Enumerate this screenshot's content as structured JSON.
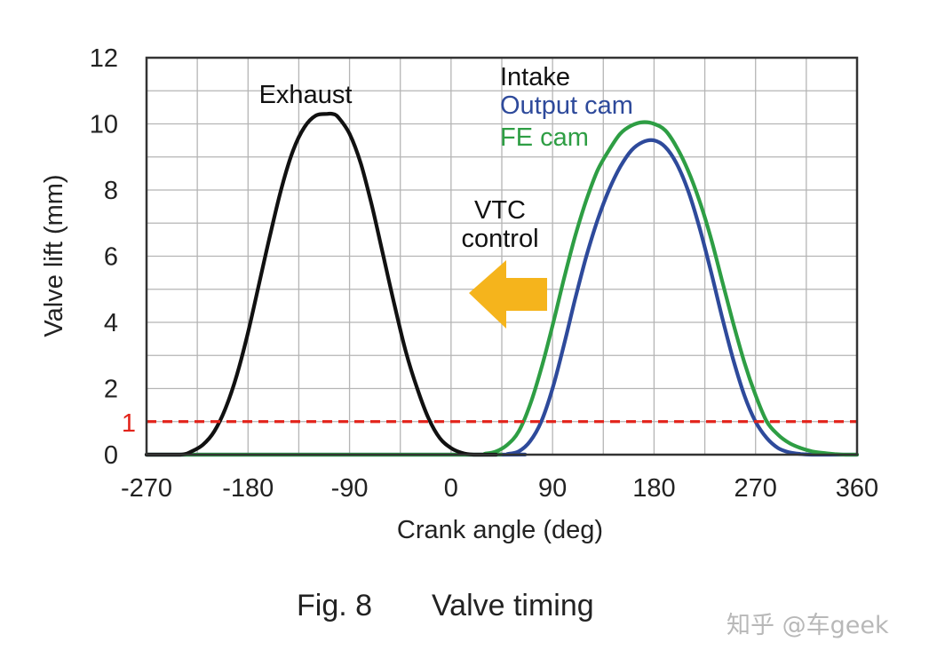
{
  "chart_data": {
    "type": "line",
    "xlabel": "Crank angle (deg)",
    "ylabel": "Valve lift (mm)",
    "xlim": [
      -270,
      360
    ],
    "ylim": [
      0,
      12
    ],
    "xticks": [
      -270,
      -180,
      -90,
      0,
      90,
      180,
      270,
      360
    ],
    "xtick_labels": [
      "-270",
      "-180",
      "-90",
      "0",
      "90",
      "180",
      "270",
      "360"
    ],
    "yticks": [
      0,
      2,
      4,
      6,
      8,
      10,
      12
    ],
    "ytick_labels": [
      "0",
      "2",
      "4",
      "6",
      "8",
      "10",
      "12"
    ],
    "grid": true,
    "series": [
      {
        "name": "Exhaust",
        "color": "#111111",
        "x": [
          -270,
          -240,
          -230,
          -220,
          -210,
          -200,
          -190,
          -180,
          -170,
          -160,
          -150,
          -140,
          -130,
          -120,
          -110,
          -105,
          -100,
          -90,
          -80,
          -70,
          -60,
          -50,
          -40,
          -30,
          -20,
          -10,
          0,
          10,
          20,
          30,
          40
        ],
        "y": [
          0,
          0,
          0.1,
          0.3,
          0.7,
          1.4,
          2.4,
          3.7,
          5.2,
          6.7,
          8.1,
          9.2,
          9.9,
          10.25,
          10.3,
          10.3,
          10.2,
          9.7,
          8.8,
          7.5,
          6.0,
          4.5,
          3.1,
          2.0,
          1.1,
          0.5,
          0.2,
          0.05,
          0,
          0,
          0
        ]
      },
      {
        "name": "Output cam",
        "color": "#2e4a9b",
        "x": [
          -270,
          40,
          50,
          60,
          70,
          80,
          90,
          100,
          110,
          120,
          130,
          140,
          150,
          160,
          170,
          180,
          190,
          200,
          210,
          220,
          230,
          240,
          250,
          260,
          270,
          280,
          290,
          300,
          310,
          320,
          330,
          360
        ],
        "y": [
          0,
          0,
          0.02,
          0.1,
          0.4,
          1.0,
          2.0,
          3.3,
          4.7,
          6.0,
          7.1,
          8.0,
          8.7,
          9.2,
          9.45,
          9.5,
          9.3,
          8.8,
          8.0,
          6.9,
          5.6,
          4.2,
          2.9,
          1.8,
          1.0,
          0.5,
          0.2,
          0.07,
          0.02,
          0,
          0,
          0
        ]
      },
      {
        "name": "FE cam",
        "color": "#2e9e44",
        "x": [
          -270,
          20,
          30,
          40,
          50,
          60,
          70,
          80,
          90,
          100,
          110,
          120,
          130,
          140,
          150,
          160,
          170,
          180,
          190,
          200,
          210,
          220,
          230,
          240,
          250,
          260,
          270,
          280,
          290,
          300,
          310,
          320,
          330,
          340,
          350,
          360
        ],
        "y": [
          0,
          0,
          0.03,
          0.1,
          0.3,
          0.7,
          1.5,
          2.6,
          3.9,
          5.3,
          6.6,
          7.7,
          8.6,
          9.2,
          9.7,
          9.95,
          10.05,
          10.0,
          9.8,
          9.3,
          8.6,
          7.7,
          6.6,
          5.3,
          4.0,
          2.8,
          1.8,
          1.0,
          0.6,
          0.35,
          0.2,
          0.1,
          0.05,
          0.02,
          0,
          0
        ]
      }
    ],
    "reference_line": {
      "y": 1,
      "label": "1",
      "color": "#e2231a",
      "style": "dashed"
    },
    "annotations": {
      "exhaust_label": "Exhaust",
      "intake_label": "Intake",
      "output_cam_label": "Output cam",
      "fe_cam_label": "FE cam",
      "vtc_line1": "VTC",
      "vtc_line2": "control",
      "arrow_direction": "left",
      "arrow_color": "#f5b41c"
    }
  },
  "caption": {
    "fig_label": "Fig. 8",
    "title": "Valve timing"
  },
  "watermark": "知乎 @车geek",
  "colors": {
    "text": "#222222",
    "grid": "#b5b5b5",
    "frame": "#333333",
    "exhaust": "#111111",
    "output_cam": "#2e4a9b",
    "fe_cam": "#2e9e44",
    "reference": "#e2231a",
    "arrow": "#f5b41c"
  }
}
